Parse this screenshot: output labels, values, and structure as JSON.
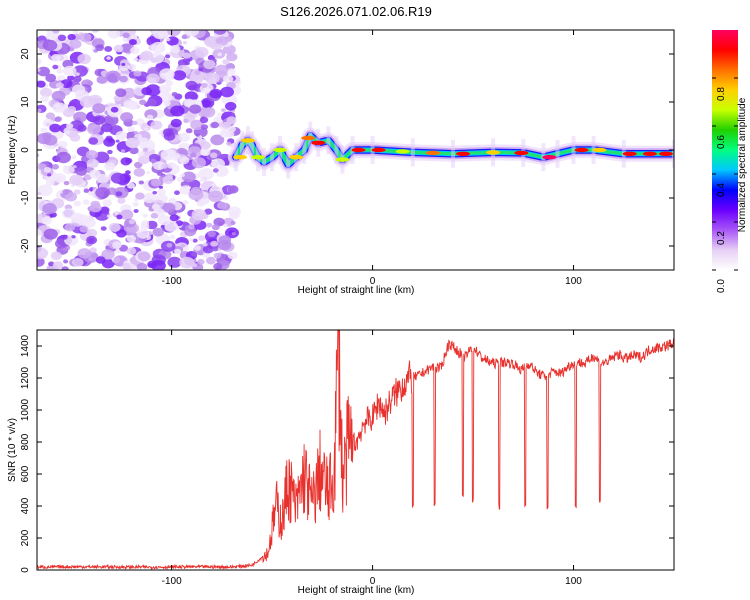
{
  "title": "S126.2026.071.02.06.R19",
  "chart_data": [
    {
      "type": "heatmap",
      "name": "spectrogram",
      "xlabel": "Height of straight line (km)",
      "ylabel": "Frequency (Hz)",
      "xlim": [
        -167,
        150
      ],
      "ylim": [
        -25,
        25
      ],
      "xticks": [
        -100,
        0,
        100
      ],
      "xtick_labels": [
        "-100",
        "0",
        "100"
      ],
      "yticks": [
        -20,
        -10,
        0,
        10,
        20
      ],
      "ytick_labels": [
        "-20",
        "-10",
        "0",
        "10",
        "20"
      ],
      "noise_region": [
        -167,
        -68
      ],
      "signal_track": [
        {
          "x": -68,
          "y": -1.5
        },
        {
          "x": -65,
          "y": 1
        },
        {
          "x": -62,
          "y": 2
        },
        {
          "x": -60,
          "y": 1
        },
        {
          "x": -57,
          "y": -1.5
        },
        {
          "x": -54,
          "y": -2.5
        },
        {
          "x": -50,
          "y": -1.5
        },
        {
          "x": -46,
          "y": 0
        },
        {
          "x": -42,
          "y": -3
        },
        {
          "x": -38,
          "y": -1.5
        },
        {
          "x": -34,
          "y": 0
        },
        {
          "x": -31,
          "y": 3
        },
        {
          "x": -27,
          "y": 1.5
        },
        {
          "x": -22,
          "y": 2
        },
        {
          "x": -18,
          "y": 0
        },
        {
          "x": -15,
          "y": -2
        },
        {
          "x": -10,
          "y": 0
        },
        {
          "x": 0,
          "y": 0
        },
        {
          "x": 20,
          "y": -0.5
        },
        {
          "x": 40,
          "y": -0.8
        },
        {
          "x": 60,
          "y": -0.5
        },
        {
          "x": 75,
          "y": -0.6
        },
        {
          "x": 85,
          "y": -1.5
        },
        {
          "x": 92,
          "y": -0.8
        },
        {
          "x": 100,
          "y": 0
        },
        {
          "x": 110,
          "y": 0
        },
        {
          "x": 125,
          "y": -0.8
        },
        {
          "x": 150,
          "y": -0.8
        }
      ],
      "colorbar": {
        "label": "Normalized spectral amplitude",
        "ticks": [
          0,
          0.2,
          0.4,
          0.6,
          0.8
        ],
        "tick_labels": [
          "0.0",
          "0.2",
          "0.4",
          "0.6",
          "0.8"
        ],
        "range": [
          0,
          1
        ],
        "colors": [
          "#ffffff",
          "#e6d0f5",
          "#a855f7",
          "#6a00ff",
          "#0000ff",
          "#00c8ff",
          "#00ff80",
          "#20d000",
          "#c8ff00",
          "#ffd000",
          "#ff7000",
          "#ff0000",
          "#ff0060"
        ]
      }
    },
    {
      "type": "line",
      "name": "snr",
      "xlabel": "Height of straight line (km)",
      "ylabel": "SNR (10 * v/v)",
      "xlim": [
        -167,
        150
      ],
      "ylim": [
        0,
        1500
      ],
      "xticks": [
        -100,
        0,
        100
      ],
      "xtick_labels": [
        "-100",
        "0",
        "100"
      ],
      "yticks": [
        0,
        200,
        400,
        600,
        800,
        1000,
        1200,
        1400
      ],
      "ytick_labels": [
        "0",
        "200",
        "400",
        "600",
        "800",
        "1000",
        "1200",
        "1400"
      ],
      "series": [
        {
          "name": "SNR",
          "color": "#e8302c",
          "points": [
            [
              -167,
              18
            ],
            [
              -150,
              20
            ],
            [
              -130,
              19
            ],
            [
              -110,
              18
            ],
            [
              -90,
              20
            ],
            [
              -70,
              19
            ],
            [
              -60,
              30
            ],
            [
              -52,
              110
            ],
            [
              -48,
              400
            ],
            [
              -45,
              300
            ],
            [
              -42,
              560
            ],
            [
              -38,
              380
            ],
            [
              -34,
              600
            ],
            [
              -30,
              410
            ],
            [
              -26,
              620
            ],
            [
              -22,
              470
            ],
            [
              -19,
              600
            ],
            [
              -17,
              1490
            ],
            [
              -15,
              560
            ],
            [
              -12,
              780
            ],
            [
              -8,
              800
            ],
            [
              -4,
              930
            ],
            [
              0,
              950
            ],
            [
              3,
              1050
            ],
            [
              6,
              980
            ],
            [
              10,
              1080
            ],
            [
              14,
              1140
            ],
            [
              18,
              1200
            ],
            [
              22,
              1210
            ],
            [
              26,
              1240
            ],
            [
              30,
              1270
            ],
            [
              34,
              1260
            ],
            [
              38,
              1420
            ],
            [
              42,
              1370
            ],
            [
              46,
              1330
            ],
            [
              50,
              1400
            ],
            [
              54,
              1330
            ],
            [
              58,
              1300
            ],
            [
              62,
              1290
            ],
            [
              66,
              1300
            ],
            [
              70,
              1290
            ],
            [
              74,
              1250
            ],
            [
              78,
              1290
            ],
            [
              82,
              1230
            ],
            [
              86,
              1210
            ],
            [
              90,
              1240
            ],
            [
              94,
              1230
            ],
            [
              98,
              1280
            ],
            [
              102,
              1300
            ],
            [
              106,
              1290
            ],
            [
              110,
              1340
            ],
            [
              114,
              1290
            ],
            [
              118,
              1310
            ],
            [
              122,
              1350
            ],
            [
              126,
              1320
            ],
            [
              130,
              1340
            ],
            [
              134,
              1330
            ],
            [
              138,
              1380
            ],
            [
              142,
              1390
            ],
            [
              146,
              1400
            ],
            [
              150,
              1420
            ]
          ],
          "dropouts": [
            {
              "x": 20,
              "floor": 400
            },
            {
              "x": 31,
              "floor": 410
            },
            {
              "x": 45,
              "floor": 450
            },
            {
              "x": 50,
              "floor": 430
            },
            {
              "x": 63,
              "floor": 400
            },
            {
              "x": 76,
              "floor": 400
            },
            {
              "x": 87,
              "floor": 390
            },
            {
              "x": 101,
              "floor": 400
            },
            {
              "x": 113,
              "floor": 440
            }
          ]
        }
      ]
    }
  ]
}
